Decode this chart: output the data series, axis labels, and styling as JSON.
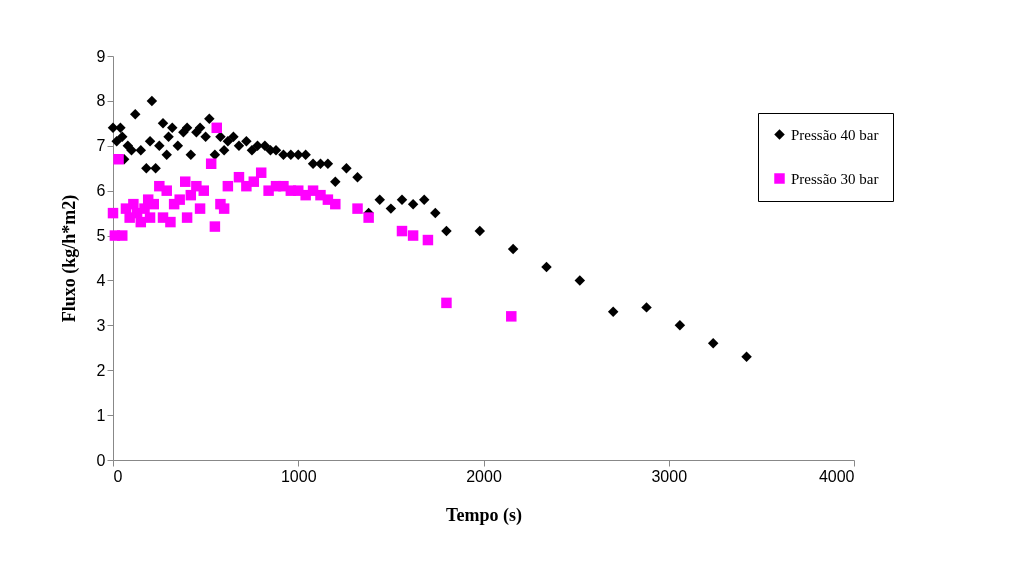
{
  "chart_data": {
    "type": "scatter",
    "xlabel": "Tempo (s)",
    "ylabel": "Fluxo (kg/h*m2)",
    "xlim": [
      0,
      4000
    ],
    "xticks": [
      0,
      1000,
      2000,
      3000,
      4000
    ],
    "ylim": [
      0,
      9
    ],
    "yticks": [
      0,
      1,
      2,
      3,
      4,
      5,
      6,
      7,
      8,
      9
    ],
    "grid": false,
    "legend": "top right",
    "series": [
      {
        "name": "Pressão 40 bar",
        "color": "#000000",
        "marker": "diamond",
        "x": [
          0,
          20,
          40,
          50,
          60,
          80,
          100,
          120,
          150,
          180,
          200,
          210,
          230,
          250,
          270,
          290,
          300,
          320,
          350,
          380,
          400,
          420,
          450,
          470,
          500,
          520,
          550,
          580,
          600,
          620,
          650,
          680,
          720,
          750,
          780,
          820,
          850,
          880,
          920,
          960,
          1000,
          1040,
          1080,
          1120,
          1160,
          1200,
          1260,
          1320,
          1380,
          1440,
          1500,
          1560,
          1620,
          1680,
          1740,
          1800,
          1980,
          2160,
          2340,
          2520,
          2700,
          2880,
          3060,
          3240,
          3420
        ],
        "values": [
          7.4,
          7.1,
          7.4,
          7.2,
          6.7,
          7.0,
          6.9,
          7.7,
          6.9,
          6.5,
          7.1,
          8.0,
          6.5,
          7.0,
          7.5,
          6.8,
          7.2,
          7.4,
          7.0,
          7.3,
          7.4,
          6.8,
          7.3,
          7.4,
          7.2,
          7.6,
          6.8,
          7.2,
          6.9,
          7.1,
          7.2,
          7.0,
          7.1,
          6.9,
          7.0,
          7.0,
          6.9,
          6.9,
          6.8,
          6.8,
          6.8,
          6.8,
          6.6,
          6.6,
          6.6,
          6.2,
          6.5,
          6.3,
          5.5,
          5.8,
          5.6,
          5.8,
          5.7,
          5.8,
          5.5,
          5.1,
          5.1,
          4.7,
          4.3,
          4.0,
          3.3,
          3.4,
          3.0,
          2.6,
          2.3
        ]
      },
      {
        "name": "Pressão 30 bar",
        "color": "#ff00ff",
        "marker": "square",
        "x": [
          0,
          10,
          30,
          50,
          70,
          90,
          110,
          130,
          150,
          170,
          190,
          200,
          220,
          250,
          270,
          290,
          310,
          330,
          360,
          390,
          400,
          420,
          450,
          470,
          490,
          530,
          550,
          560,
          580,
          600,
          620,
          680,
          720,
          760,
          800,
          840,
          880,
          920,
          960,
          1000,
          1040,
          1080,
          1120,
          1160,
          1200,
          1320,
          1380,
          1560,
          1620,
          1700,
          1800,
          2150
        ],
        "values": [
          5.5,
          5.0,
          6.7,
          5.0,
          5.6,
          5.4,
          5.7,
          5.5,
          5.3,
          5.6,
          5.8,
          5.4,
          5.7,
          6.1,
          5.4,
          6.0,
          5.3,
          5.7,
          5.8,
          6.2,
          5.4,
          5.9,
          6.1,
          5.6,
          6.0,
          6.6,
          5.2,
          7.4,
          5.7,
          5.6,
          6.1,
          6.3,
          6.1,
          6.2,
          6.4,
          6.0,
          6.1,
          6.1,
          6.0,
          6.0,
          5.9,
          6.0,
          5.9,
          5.8,
          5.7,
          5.6,
          5.4,
          5.1,
          5.0,
          4.9,
          3.5,
          3.2
        ]
      }
    ]
  }
}
